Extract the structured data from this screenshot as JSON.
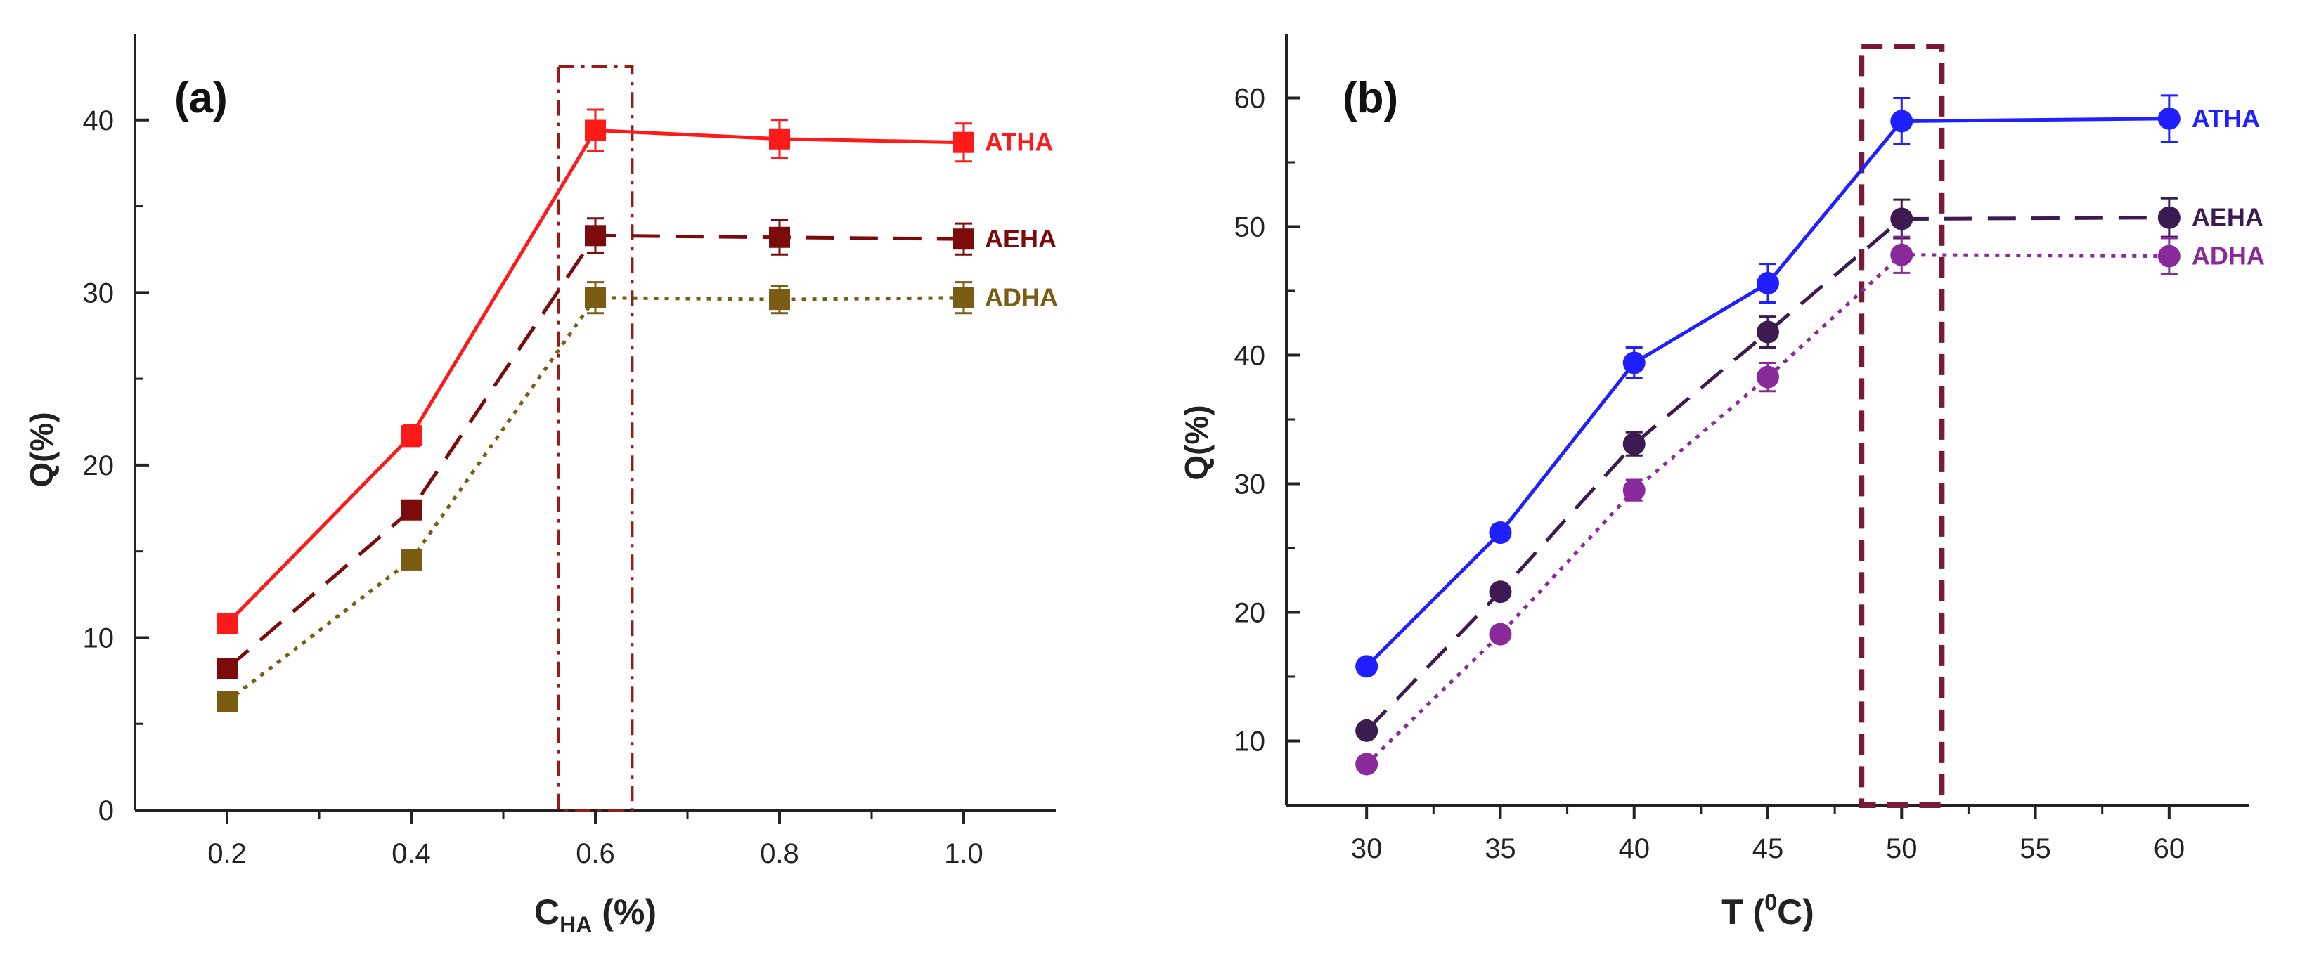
{
  "chart_data": [
    {
      "type": "line",
      "panel_label": "(a)",
      "xlabel_main": "C",
      "xlabel_sub": "HA",
      "xlabel_tail": " (%)",
      "ylabel": "Q(%)",
      "xlim": [
        0.1,
        1.1
      ],
      "ylim": [
        0,
        45
      ],
      "x": [
        0.2,
        0.4,
        0.6,
        0.8,
        1.0
      ],
      "xticks": [
        "0.2",
        "0.4",
        "0.6",
        "0.8",
        "1.0"
      ],
      "yticks": [
        "0",
        "10",
        "20",
        "30",
        "40"
      ],
      "highlight_x_range": [
        0.56,
        0.64
      ],
      "series": [
        {
          "name": "ATHA",
          "color": "#ff1a1a",
          "dash": "solid",
          "marker": "square",
          "values": [
            10.8,
            21.7,
            39.4,
            38.9,
            38.7
          ],
          "errors": [
            0.5,
            0.6,
            1.2,
            1.1,
            1.1
          ]
        },
        {
          "name": "AEHA",
          "color": "#7b0b0b",
          "dash": "dashed",
          "marker": "square",
          "values": [
            8.2,
            17.4,
            33.3,
            33.2,
            33.1
          ],
          "errors": [
            0.4,
            0.5,
            1.0,
            1.0,
            0.9
          ]
        },
        {
          "name": "ADHA",
          "color": "#7a5c12",
          "dash": "dotted",
          "marker": "square",
          "values": [
            6.3,
            14.5,
            29.7,
            29.6,
            29.7
          ],
          "errors": [
            0.4,
            0.5,
            0.9,
            0.8,
            0.9
          ]
        }
      ]
    },
    {
      "type": "line",
      "panel_label": "(b)",
      "xlabel_main": "T (",
      "xlabel_sup": "0",
      "xlabel_tail": "C)",
      "ylabel": "Q(%)",
      "xlim": [
        27,
        63
      ],
      "ylim": [
        5,
        65
      ],
      "x": [
        30,
        35,
        40,
        45,
        50,
        60
      ],
      "xticks": [
        "30",
        "35",
        "40",
        "45",
        "50",
        "55",
        "60"
      ],
      "xtick_values": [
        30,
        35,
        40,
        45,
        50,
        55,
        60
      ],
      "yticks": [
        "10",
        "20",
        "30",
        "40",
        "50",
        "60"
      ],
      "highlight_x_range": [
        48.5,
        51.5
      ],
      "series": [
        {
          "name": "ATHA",
          "color": "#1f1fff",
          "dash": "solid",
          "marker": "circle",
          "values": [
            15.8,
            26.2,
            39.4,
            45.6,
            58.2,
            58.4
          ],
          "errors": [
            0.5,
            0.6,
            1.2,
            1.5,
            1.8,
            1.8
          ]
        },
        {
          "name": "AEHA",
          "color": "#3d1a52",
          "dash": "dashed",
          "marker": "circle",
          "values": [
            10.8,
            21.6,
            33.1,
            41.8,
            50.6,
            50.7
          ],
          "errors": [
            0.4,
            0.5,
            0.9,
            1.2,
            1.5,
            1.5
          ]
        },
        {
          "name": "ADHA",
          "color": "#8a2a9a",
          "dash": "dotted",
          "marker": "circle",
          "values": [
            8.2,
            18.3,
            29.5,
            38.3,
            47.8,
            47.7
          ],
          "errors": [
            0.4,
            0.5,
            0.8,
            1.1,
            1.4,
            1.4
          ]
        }
      ]
    }
  ]
}
